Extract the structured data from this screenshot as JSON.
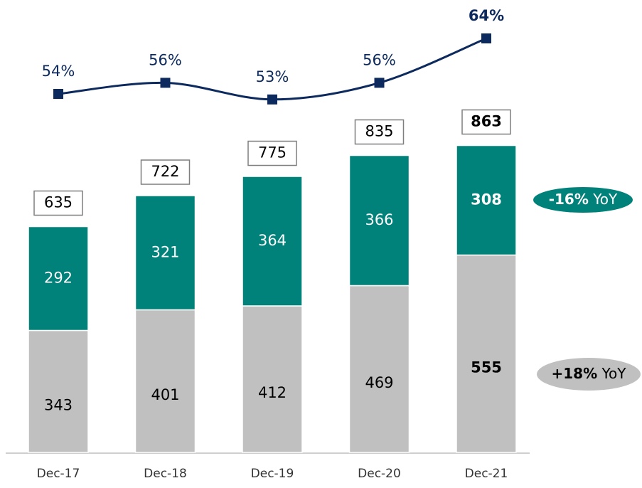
{
  "chart_data": {
    "type": "stacked-bar-line",
    "categories": [
      "Dec-17",
      "Dec-18",
      "Dec-19",
      "Dec-20",
      "Dec-21"
    ],
    "series": [
      {
        "name": null,
        "color": "#c0c0c0",
        "values": [
          343,
          401,
          412,
          469,
          555
        ]
      },
      {
        "name": null,
        "color": "#00827a",
        "values": [
          292,
          321,
          364,
          366,
          308
        ]
      }
    ],
    "totals": [
      635,
      722,
      775,
      835,
      863
    ],
    "line": {
      "color": "#0d2a5e",
      "values": [
        54,
        56,
        53,
        56,
        64
      ],
      "value_labels": [
        "54%",
        "56%",
        "53%",
        "56%",
        "64%"
      ]
    },
    "annotations": [
      {
        "bold": "-16%",
        "text": "YoY",
        "color": "#00827a",
        "text_color": "#ffffff"
      },
      {
        "bold": "+18%",
        "text": "YoY",
        "color": "#c0c0c0",
        "text_color": "#000000"
      }
    ]
  }
}
